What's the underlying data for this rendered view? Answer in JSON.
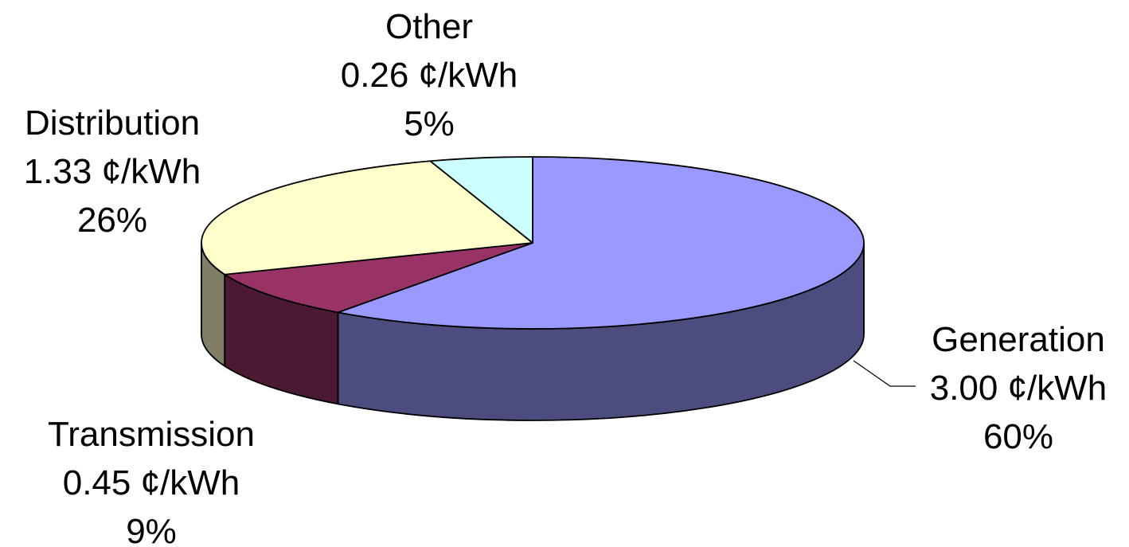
{
  "chart_data": {
    "type": "pie",
    "variant": "3d",
    "title": "",
    "slices": [
      {
        "label": "Generation",
        "value_text": "3.00 ¢/kWh",
        "value": 3.0,
        "percent": 60,
        "percent_text": "60%",
        "top_color": "#9999FF",
        "side_color": "#4C4C7F"
      },
      {
        "label": "Transmission",
        "value_text": "0.45 ¢/kWh",
        "value": 0.45,
        "percent": 9,
        "percent_text": "9%",
        "top_color": "#993366",
        "side_color": "#4C1932"
      },
      {
        "label": "Distribution",
        "value_text": "1.33 ¢/kWh",
        "value": 1.33,
        "percent": 26,
        "percent_text": "26%",
        "top_color": "#FFFFCC",
        "side_color": "#807F66"
      },
      {
        "label": "Other",
        "value_text": "0.26 ¢/kWh",
        "value": 0.26,
        "percent": 5,
        "percent_text": "5%",
        "top_color": "#CCFFFF",
        "side_color": "#667F7F"
      }
    ]
  }
}
